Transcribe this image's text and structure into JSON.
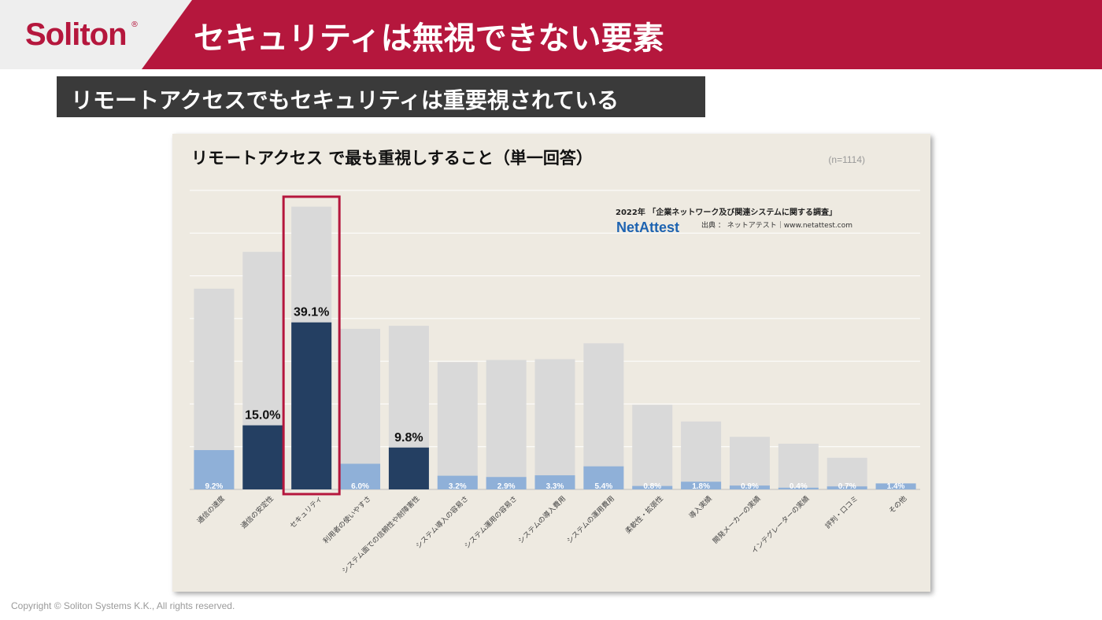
{
  "header": {
    "logo_text": "Soliton",
    "logo_mark": "®",
    "title": "セキュリティは無視できない要素"
  },
  "subtitle": "リモートアクセスでもセキュリティは重要視されている",
  "chart_data": {
    "type": "bar",
    "title": "リモートアクセス で最も重視しすること（単一回答）",
    "sample_size": "(n=1114)",
    "source_line1": "2022年 「企業ネットワーク及び関連システムに関する調査」",
    "source_brand": "NetAttest",
    "source_line2": "出典 ： ネットアテスト｜www.netattest.com",
    "categories": [
      "通信の速度",
      "通信の安定性",
      "セキュリティ",
      "利用者の使いやすさ",
      "システム面での信頼性や耐障害性",
      "システム導入の容易さ",
      "システム運用の容易さ",
      "システムの導入費用",
      "システムの運用費用",
      "柔軟性・拡張性",
      "導入実績",
      "開発メーカーの実績",
      "インテグレーターの実績",
      "評判・口コミ",
      "その他"
    ],
    "values": [
      9.2,
      15.0,
      39.1,
      6.0,
      9.8,
      3.2,
      2.9,
      3.3,
      5.4,
      0.8,
      1.8,
      0.9,
      0.4,
      0.7,
      1.4
    ],
    "value_labels": [
      "9.2%",
      "15.0%",
      "39.1%",
      "6.0%",
      "9.8%",
      "3.2%",
      "2.9%",
      "3.3%",
      "5.4%",
      "0.8%",
      "1.8%",
      "0.9%",
      "0.4%",
      "0.7%",
      "1.4%"
    ],
    "highlighted": [
      false,
      true,
      true,
      false,
      true,
      false,
      false,
      false,
      false,
      false,
      false,
      false,
      false,
      false,
      false
    ],
    "boxed_category": "セキュリティ",
    "background_total": [
      47.0,
      55.6,
      66.2,
      37.6,
      38.3,
      29.8,
      30.3,
      30.5,
      34.2,
      19.8,
      15.9,
      12.3,
      10.7,
      7.4,
      1.4
    ],
    "ylim": [
      0,
      70
    ],
    "colors": {
      "highlight": "#243f62",
      "normal": "#8fb0d8",
      "background_bar": "#d9d9d9",
      "box": "#b5173d"
    }
  },
  "footer": {
    "copyright": "Copyright © Soliton Systems K.K., All rights reserved."
  }
}
